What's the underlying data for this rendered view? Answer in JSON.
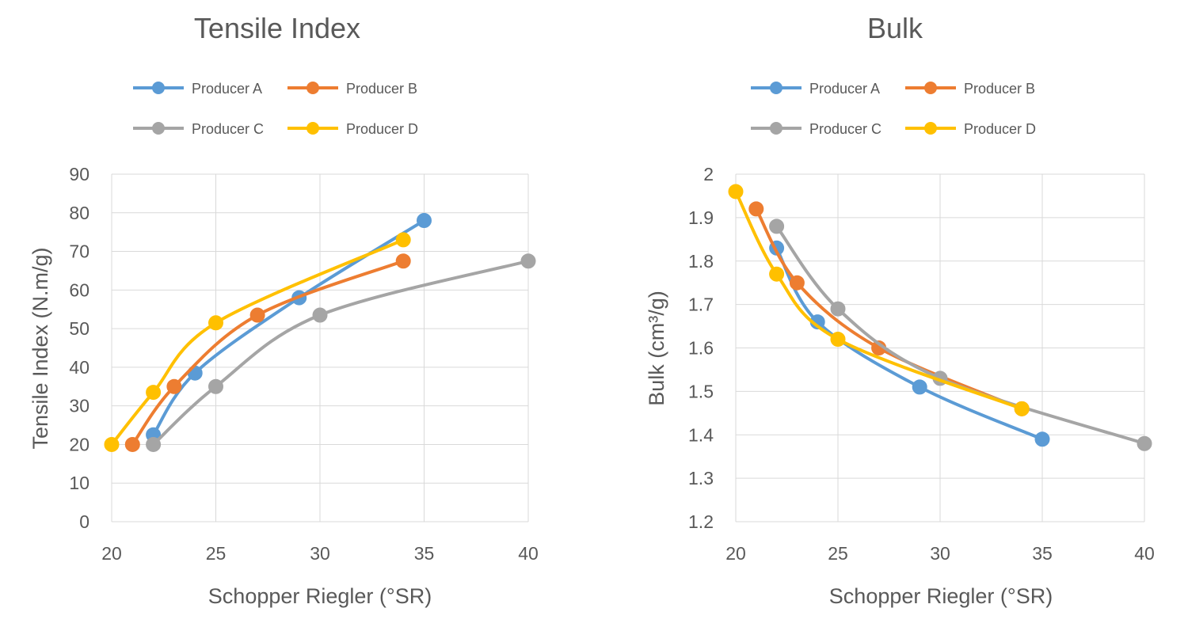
{
  "chart_data": [
    {
      "type": "line",
      "title": "Tensile Index",
      "xlabel": "Schopper Riegler (°SR)",
      "ylabel": "Tensile Index (N.m/g)",
      "xlim": [
        20,
        40
      ],
      "ylim": [
        0,
        90
      ],
      "xticks": [
        20,
        25,
        30,
        35,
        40
      ],
      "yticks": [
        0,
        10,
        20,
        30,
        40,
        50,
        60,
        70,
        80,
        90
      ],
      "grid": true,
      "legend_position": "top",
      "series": [
        {
          "name": "Producer A",
          "color": "#5B9BD5",
          "x": [
            22,
            24,
            29,
            35
          ],
          "y": [
            22.5,
            38.5,
            58,
            78
          ]
        },
        {
          "name": "Producer B",
          "color": "#ED7D31",
          "x": [
            21,
            23,
            27,
            34
          ],
          "y": [
            20,
            35,
            53.5,
            67.5
          ]
        },
        {
          "name": "Producer C",
          "color": "#A5A5A5",
          "x": [
            22,
            25,
            30,
            40
          ],
          "y": [
            20,
            35,
            53.5,
            67.5
          ]
        },
        {
          "name": "Producer D",
          "color": "#FFC000",
          "x": [
            20,
            22,
            25,
            34
          ],
          "y": [
            20,
            33.5,
            51.5,
            73
          ]
        }
      ]
    },
    {
      "type": "line",
      "title": "Bulk",
      "xlabel": "Schopper Riegler (°SR)",
      "ylabel": "Bulk (cm³/g)",
      "xlim": [
        20,
        40
      ],
      "ylim": [
        1.2,
        2
      ],
      "xticks": [
        20,
        25,
        30,
        35,
        40
      ],
      "yticks": [
        "1.2",
        "1.3",
        "1.4",
        "1.5",
        "1.6",
        "1.7",
        "1.8",
        "1.9",
        "2"
      ],
      "grid": true,
      "legend_position": "top",
      "series": [
        {
          "name": "Producer A",
          "color": "#5B9BD5",
          "x": [
            22,
            24,
            29,
            35
          ],
          "y": [
            1.83,
            1.66,
            1.51,
            1.39
          ]
        },
        {
          "name": "Producer B",
          "color": "#ED7D31",
          "x": [
            21,
            23,
            27,
            34
          ],
          "y": [
            1.92,
            1.75,
            1.6,
            1.46
          ]
        },
        {
          "name": "Producer C",
          "color": "#A5A5A5",
          "x": [
            22,
            25,
            30,
            40
          ],
          "y": [
            1.88,
            1.69,
            1.53,
            1.38
          ]
        },
        {
          "name": "Producer D",
          "color": "#FFC000",
          "x": [
            20,
            22,
            25,
            34
          ],
          "y": [
            1.96,
            1.77,
            1.62,
            1.46
          ]
        }
      ]
    }
  ]
}
